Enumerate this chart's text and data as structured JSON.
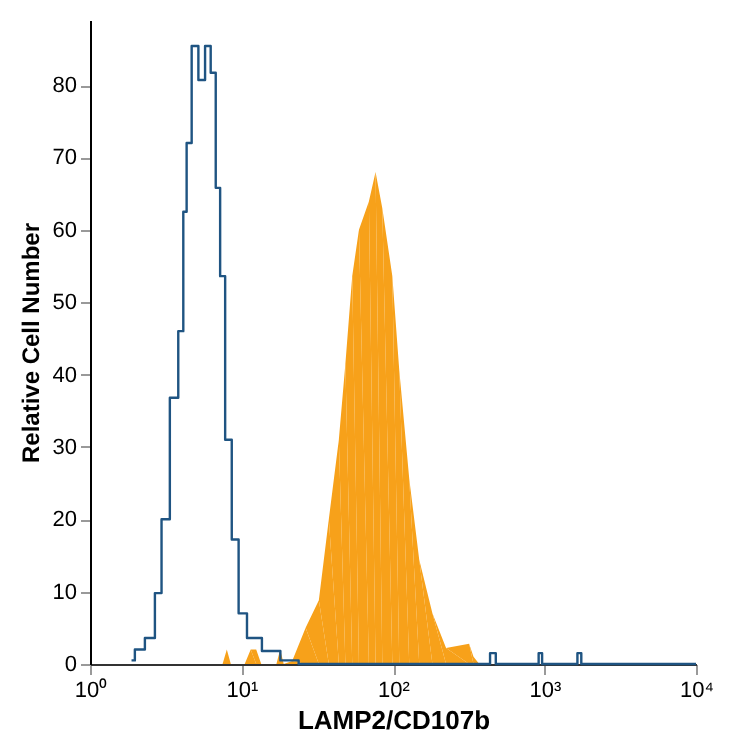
{
  "chart_data": {
    "type": "area",
    "xlabel": "LAMP2/CD107b",
    "ylabel": "Relative Cell Number",
    "log": "x",
    "xlim": [
      1,
      10000
    ],
    "xticks": [
      {
        "value": 1,
        "label": "10⁰"
      },
      {
        "value": 10,
        "label": "10¹"
      },
      {
        "value": 100,
        "label": "10²"
      },
      {
        "value": 1000,
        "label": "10³"
      },
      {
        "value": 10000,
        "label": "10⁴"
      }
    ],
    "ylim": [
      0,
      89
    ],
    "yticks": [
      0,
      10,
      20,
      30,
      40,
      50,
      60,
      70,
      80
    ],
    "grid": false,
    "legend": false,
    "series": [
      {
        "color": "#f7a11a",
        "x": [
          7.5,
          8,
          8.5,
          10.5,
          11.5,
          12.5,
          13.5,
          17,
          18,
          19,
          21.6,
          26.5,
          32.4,
          37.7,
          43.9,
          48.5,
          53.8,
          59.6,
          69.3,
          76.7,
          85,
          99,
          110,
          128,
          149,
          182,
          224,
          318,
          340,
          371
        ],
        "values": [
          0,
          2,
          0,
          0,
          2,
          2,
          0,
          0,
          2,
          0,
          0.4,
          5,
          8.8,
          20,
          31,
          41.5,
          53.6,
          60,
          63.9,
          68,
          63,
          53.6,
          40.6,
          25.6,
          14.4,
          7,
          2.2,
          2.8,
          1,
          0
        ]
      },
      {
        "type": "step",
        "color": "#1f5482",
        "x": [
          1.88,
          2.08,
          2.55,
          2.82,
          3.12,
          3.63,
          4.03,
          4.23,
          4.46,
          4.93,
          5.47,
          6.04,
          6.49,
          7.04,
          7.42,
          8.2,
          9.07,
          10.1,
          11.7,
          15.9,
          20.5,
          27.7,
          420,
          455,
          500,
          900,
          930,
          1000,
          1600,
          1700,
          1800,
          10000
        ],
        "values": [
          0.5,
          2,
          3.6,
          9.8,
          20,
          36.8,
          46,
          62.5,
          72,
          85.4,
          80.7,
          85.4,
          81.7,
          65.8,
          53.6,
          31,
          17.2,
          7,
          3.6,
          1.8,
          0.5,
          0,
          0,
          1.5,
          0,
          0,
          1.5,
          0,
          0,
          1.5,
          0,
          0
        ]
      }
    ]
  }
}
